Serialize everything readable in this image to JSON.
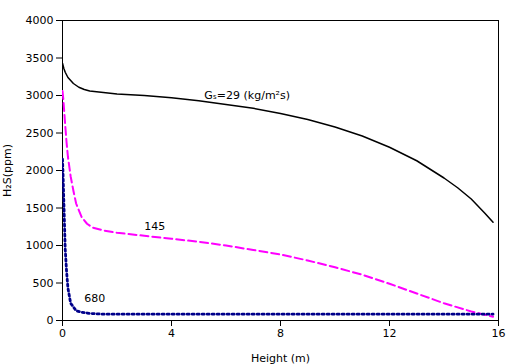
{
  "chart_data": {
    "type": "line",
    "xlabel": "Height (m)",
    "ylabel": "H₂S(ppm)",
    "xlim": [
      0,
      16
    ],
    "ylim": [
      0,
      4000
    ],
    "xticks": [
      0,
      4,
      8,
      12,
      16
    ],
    "yticks": [
      0,
      500,
      1000,
      1500,
      2000,
      2500,
      3000,
      3500,
      4000
    ],
    "grid": false,
    "series": [
      {
        "color": "#000000",
        "line_style": "solid",
        "x": [
          0,
          0.05,
          0.1,
          0.2,
          0.4,
          0.6,
          0.8,
          1.0,
          1.5,
          2.0,
          2.5,
          3.0,
          4.0,
          5.0,
          6.0,
          7.0,
          8.0,
          9.0,
          10.0,
          11.0,
          12.0,
          13.0,
          14.0,
          14.5,
          15.0,
          15.5,
          15.8
        ],
        "values": [
          3430,
          3360,
          3310,
          3240,
          3160,
          3110,
          3080,
          3060,
          3040,
          3020,
          3010,
          3000,
          2970,
          2930,
          2880,
          2830,
          2760,
          2680,
          2580,
          2460,
          2310,
          2130,
          1900,
          1770,
          1620,
          1430,
          1310
        ]
      },
      {
        "color": "#FF00FF",
        "line_style": "dashed",
        "x": [
          0,
          0.03,
          0.06,
          0.1,
          0.15,
          0.2,
          0.3,
          0.4,
          0.5,
          0.7,
          0.9,
          1.1,
          1.3,
          1.5,
          2.0,
          2.5,
          3.0,
          4.0,
          5.0,
          6.0,
          7.0,
          8.0,
          9.0,
          10.0,
          11.0,
          12.0,
          13.0,
          14.0,
          15.0,
          15.8
        ],
        "values": [
          3060,
          2950,
          2800,
          2600,
          2370,
          2180,
          1920,
          1730,
          1560,
          1380,
          1290,
          1240,
          1220,
          1200,
          1170,
          1150,
          1130,
          1090,
          1050,
          1000,
          940,
          880,
          800,
          710,
          610,
          490,
          360,
          230,
          120,
          50
        ]
      },
      {
        "color": "#00008B",
        "line_style": "dotted",
        "x": [
          0,
          0.02,
          0.04,
          0.06,
          0.08,
          0.1,
          0.15,
          0.2,
          0.3,
          0.5,
          0.7,
          0.9,
          1.0,
          1.2,
          1.5,
          2.0,
          3.0,
          4.0,
          6.0,
          8.0,
          10.0,
          12.0,
          14.0,
          15.8
        ],
        "values": [
          2150,
          1950,
          1700,
          1450,
          1200,
          950,
          650,
          430,
          230,
          130,
          110,
          100,
          95,
          90,
          85,
          85,
          85,
          85,
          85,
          85,
          85,
          85,
          85,
          85
        ]
      }
    ],
    "annotations": [
      {
        "x": 5.2,
        "y": 3000,
        "text": "Gₛ=29 (kg/m²s)"
      },
      {
        "x": 3.0,
        "y": 1260,
        "text": "145"
      },
      {
        "x": 0.8,
        "y": 290,
        "text": "680"
      }
    ]
  }
}
